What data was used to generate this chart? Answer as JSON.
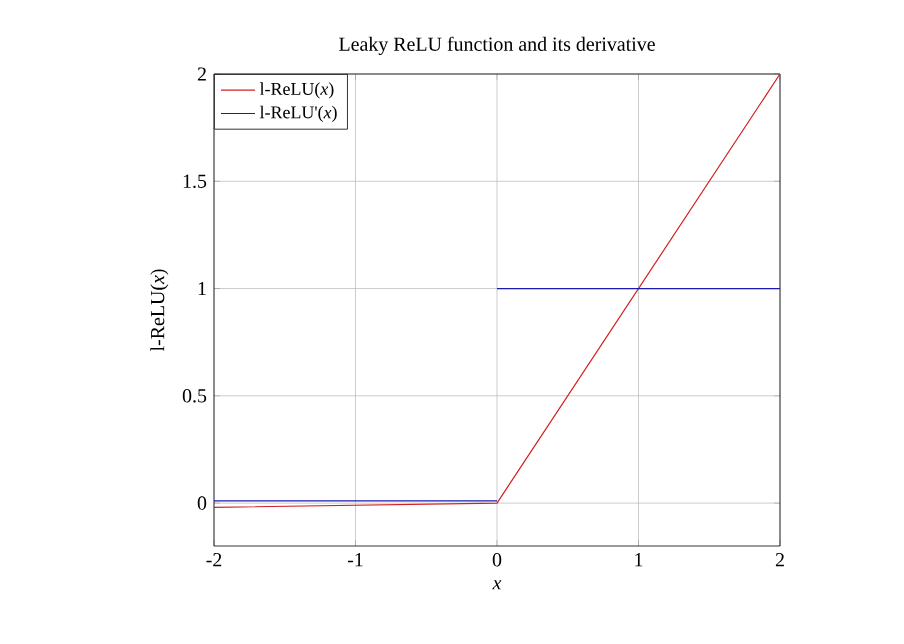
{
  "chart_data": {
    "type": "line",
    "title": "Leaky ReLU function and its derivative",
    "xlabel": "*x*",
    "ylabel": "l-ReLU(*x*)",
    "series": [
      {
        "name": "l-ReLU(*x*)",
        "color": "#d42020",
        "x": [
          -2,
          0,
          2
        ],
        "values": [
          -0.02,
          0,
          2
        ]
      },
      {
        "name": "l-ReLU'(*x*)",
        "color": "#1a1ab0",
        "x": [
          -2,
          0
        ],
        "values": [
          0.01,
          0.01
        ]
      },
      {
        "color": "#1a1ab0",
        "x": [
          0,
          2
        ],
        "values": [
          1,
          1
        ]
      }
    ],
    "xlim": [
      -2,
      2
    ],
    "ylim": [
      -0.2,
      2
    ],
    "xticks": [
      -2,
      -1,
      0,
      1,
      2
    ],
    "yticks": [
      0,
      0.5,
      1,
      1.5,
      2
    ],
    "grid": true,
    "legend": "top left",
    "marker": "none",
    "line_style": "solid"
  }
}
